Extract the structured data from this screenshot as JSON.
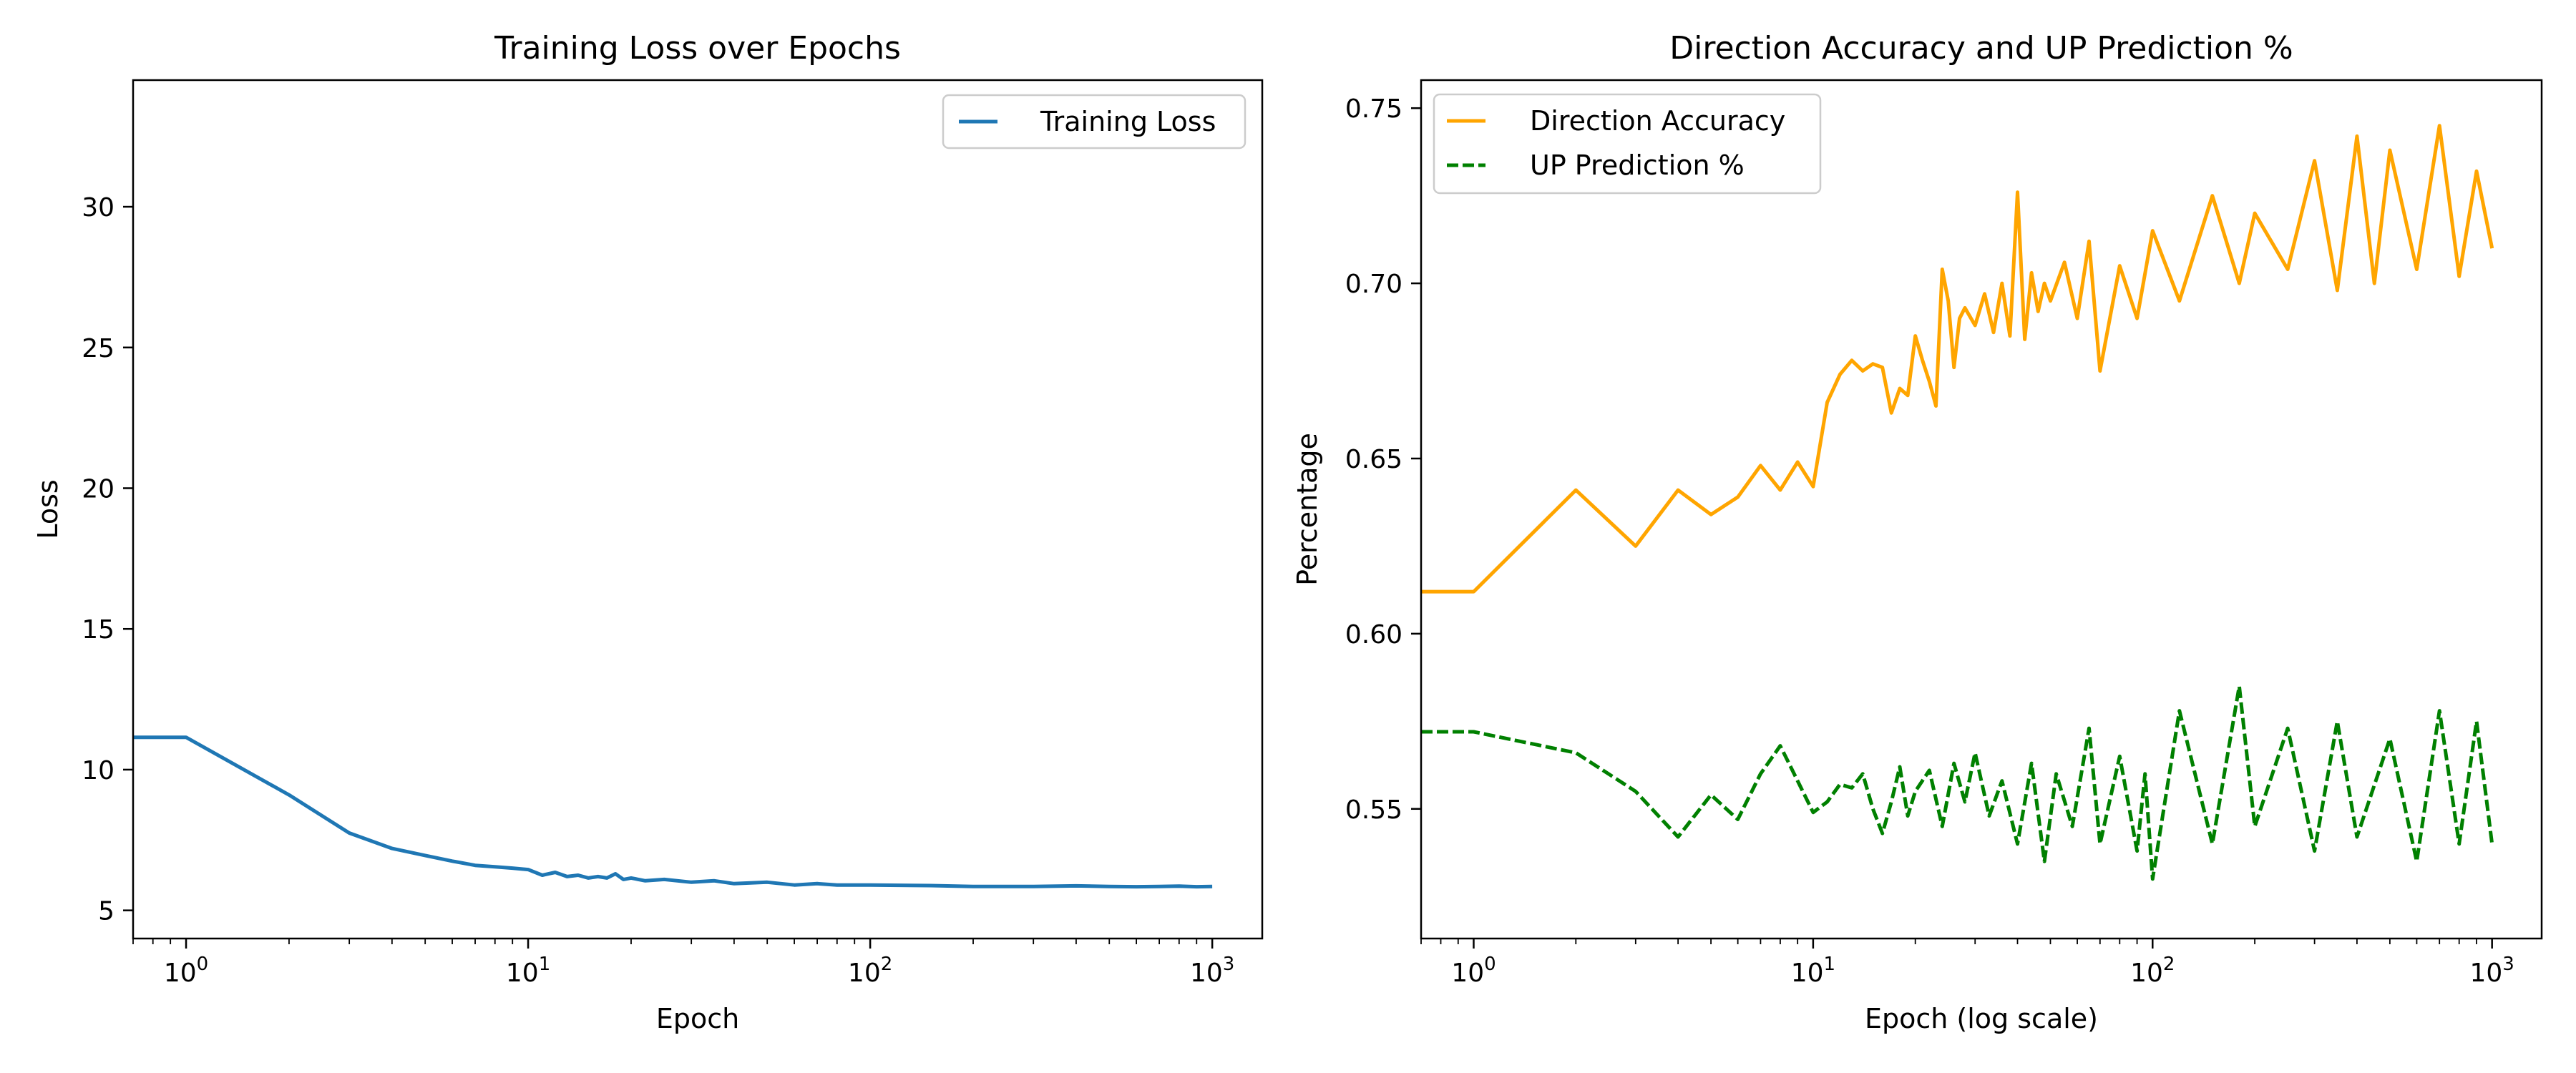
{
  "chart_data": [
    {
      "type": "line",
      "title": "Training Loss over Epochs",
      "xlabel": "Epoch",
      "ylabel": "Loss",
      "xscale": "log",
      "xlim": [
        0.7,
        1400
      ],
      "ylim": [
        4.0,
        34.5
      ],
      "xticks": [
        {
          "value": 1,
          "base": "10",
          "exp": "0"
        },
        {
          "value": 10,
          "base": "10",
          "exp": "1"
        },
        {
          "value": 100,
          "base": "10",
          "exp": "2"
        },
        {
          "value": 1000,
          "base": "10",
          "exp": "3"
        }
      ],
      "yticks": [
        {
          "value": 5,
          "label": "5"
        },
        {
          "value": 10,
          "label": "10"
        },
        {
          "value": 15,
          "label": "15"
        },
        {
          "value": 20,
          "label": "20"
        },
        {
          "value": 25,
          "label": "25"
        },
        {
          "value": 30,
          "label": "30"
        }
      ],
      "grid": false,
      "legend_position": "upper right",
      "series": [
        {
          "name": "Training Loss",
          "color": "#1f77b4",
          "style": "solid",
          "x": [
            0,
            1,
            2,
            3,
            4,
            5,
            6,
            7,
            8,
            9,
            10,
            11,
            12,
            13,
            14,
            15,
            16,
            17,
            18,
            19,
            20,
            22,
            25,
            30,
            35,
            40,
            50,
            60,
            70,
            80,
            100,
            150,
            200,
            300,
            400,
            500,
            600,
            700,
            800,
            900,
            1000
          ],
          "y": [
            11.15,
            11.15,
            9.1,
            7.75,
            7.2,
            6.95,
            6.75,
            6.6,
            6.55,
            6.5,
            6.45,
            6.25,
            6.35,
            6.2,
            6.25,
            6.15,
            6.2,
            6.15,
            6.3,
            6.1,
            6.15,
            6.05,
            6.1,
            6.0,
            6.05,
            5.95,
            6.0,
            5.9,
            5.95,
            5.9,
            5.9,
            5.88,
            5.85,
            5.85,
            5.87,
            5.85,
            5.84,
            5.85,
            5.86,
            5.84,
            5.85
          ]
        }
      ]
    },
    {
      "type": "line",
      "title": "Direction Accuracy and UP Prediction %",
      "xlabel": "Epoch (log scale)",
      "ylabel": "Percentage",
      "xscale": "log",
      "xlim": [
        0.7,
        1400
      ],
      "ylim": [
        0.513,
        0.758
      ],
      "xticks": [
        {
          "value": 1,
          "base": "10",
          "exp": "0"
        },
        {
          "value": 10,
          "base": "10",
          "exp": "1"
        },
        {
          "value": 100,
          "base": "10",
          "exp": "2"
        },
        {
          "value": 1000,
          "base": "10",
          "exp": "3"
        }
      ],
      "yticks": [
        {
          "value": 0.55,
          "label": "0.55"
        },
        {
          "value": 0.6,
          "label": "0.60"
        },
        {
          "value": 0.65,
          "label": "0.65"
        },
        {
          "value": 0.7,
          "label": "0.70"
        },
        {
          "value": 0.75,
          "label": "0.75"
        }
      ],
      "grid": false,
      "legend_position": "upper left",
      "series": [
        {
          "name": "Direction Accuracy",
          "color": "#ffa500",
          "style": "solid",
          "x": [
            0,
            1,
            2,
            3,
            4,
            5,
            6,
            7,
            8,
            9,
            10,
            11,
            12,
            13,
            14,
            15,
            16,
            17,
            18,
            19,
            20,
            21,
            22,
            23,
            24,
            25,
            26,
            27,
            28,
            30,
            32,
            34,
            36,
            38,
            40,
            42,
            44,
            46,
            48,
            50,
            55,
            60,
            65,
            70,
            80,
            90,
            100,
            120,
            150,
            180,
            200,
            250,
            300,
            350,
            400,
            450,
            500,
            600,
            700,
            800,
            900,
            1000
          ],
          "y": [
            0.612,
            0.612,
            0.641,
            0.625,
            0.641,
            0.634,
            0.639,
            0.648,
            0.641,
            0.649,
            0.642,
            0.666,
            0.674,
            0.678,
            0.675,
            0.677,
            0.676,
            0.663,
            0.67,
            0.668,
            0.685,
            0.678,
            0.672,
            0.665,
            0.704,
            0.695,
            0.676,
            0.69,
            0.693,
            0.688,
            0.697,
            0.686,
            0.7,
            0.685,
            0.726,
            0.684,
            0.703,
            0.692,
            0.7,
            0.695,
            0.706,
            0.69,
            0.712,
            0.675,
            0.705,
            0.69,
            0.715,
            0.695,
            0.725,
            0.7,
            0.72,
            0.704,
            0.735,
            0.698,
            0.742,
            0.7,
            0.738,
            0.704,
            0.745,
            0.702,
            0.732,
            0.71
          ]
        },
        {
          "name": "UP Prediction %",
          "color": "#008000",
          "style": "dashed",
          "x": [
            0,
            1,
            2,
            3,
            4,
            5,
            6,
            7,
            8,
            9,
            10,
            11,
            12,
            13,
            14,
            15,
            16,
            17,
            18,
            19,
            20,
            22,
            24,
            26,
            28,
            30,
            33,
            36,
            40,
            44,
            48,
            52,
            58,
            65,
            70,
            80,
            90,
            95,
            100,
            120,
            150,
            180,
            200,
            250,
            300,
            350,
            400,
            500,
            600,
            700,
            800,
            900,
            1000
          ],
          "y": [
            0.572,
            0.572,
            0.566,
            0.555,
            0.542,
            0.554,
            0.547,
            0.56,
            0.568,
            0.558,
            0.549,
            0.552,
            0.557,
            0.556,
            0.56,
            0.55,
            0.543,
            0.552,
            0.562,
            0.548,
            0.555,
            0.561,
            0.545,
            0.563,
            0.552,
            0.566,
            0.548,
            0.558,
            0.54,
            0.563,
            0.535,
            0.56,
            0.545,
            0.573,
            0.54,
            0.565,
            0.538,
            0.56,
            0.53,
            0.578,
            0.54,
            0.585,
            0.545,
            0.573,
            0.538,
            0.575,
            0.542,
            0.57,
            0.535,
            0.578,
            0.54,
            0.575,
            0.54
          ]
        }
      ]
    }
  ]
}
